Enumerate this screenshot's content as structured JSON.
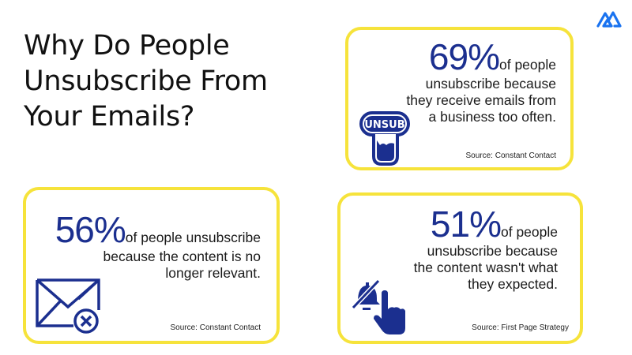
{
  "title": "Why Do People Unsubscribe From Your Emails?",
  "colors": {
    "accent": "#1b2f8f",
    "border": "#f6e33b",
    "logo": "#1a73f0"
  },
  "logo": {
    "icon": "mountain-logo-icon"
  },
  "cards": [
    {
      "percent": "69%",
      "lead": "of people",
      "text": "unsubscribe because they receive emails from a business too often.",
      "source": "Source: Constant Contact",
      "icon": "unsub-button-icon",
      "icon_label": "UNSUB"
    },
    {
      "percent": "56%",
      "lead": "of people unsubscribe",
      "text": "because the content is no longer relevant.",
      "source": "Source: Constant Contact",
      "icon": "envelope-x-icon"
    },
    {
      "percent": "51%",
      "lead": "of people",
      "text": "unsubscribe because the content wasn't what they expected.",
      "source": "Source: First Page Strategy",
      "icon": "muted-bell-pointer-icon"
    }
  ]
}
